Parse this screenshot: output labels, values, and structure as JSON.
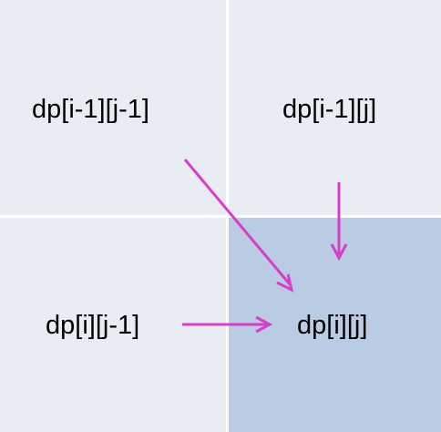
{
  "cells": {
    "top_left": "dp[i-1][j-1]",
    "top_right": "dp[i-1][j]",
    "bottom_left": "dp[i][j-1]",
    "bottom_right": "dp[i][j]"
  },
  "colors": {
    "cell_fill": "#e8edf4",
    "target_fill": "#b9cce3",
    "grid_line": "#ffffff",
    "arrow": "#d63ec9"
  }
}
